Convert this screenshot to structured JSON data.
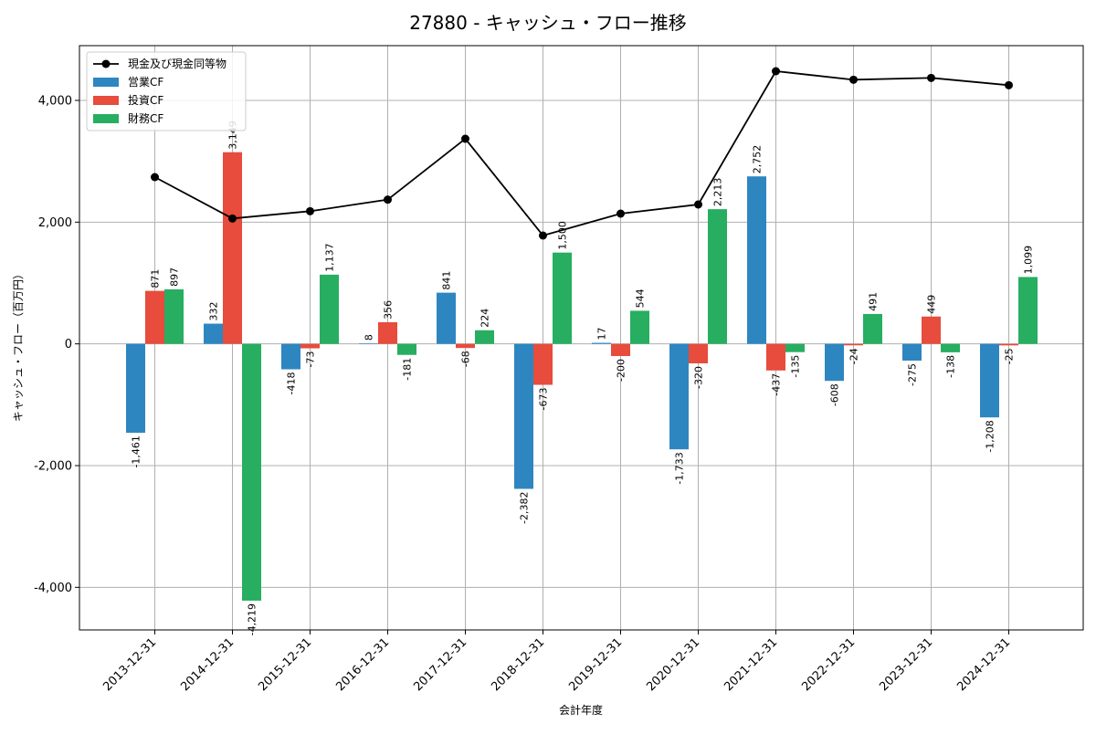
{
  "chart_data": {
    "type": "bar",
    "title": "27880 - キャッシュ・フロー推移",
    "xlabel": "会計年度",
    "ylabel": "キャッシュ・フロー（百万円）",
    "ylim": [
      -4700,
      4900
    ],
    "yticks": [
      -4000,
      -2000,
      0,
      2000,
      4000
    ],
    "ytick_labels": [
      "-4,000",
      "-2,000",
      "0",
      "2,000",
      "4,000"
    ],
    "grid": true,
    "legend_position": "top-left",
    "categories": [
      "2013-12-31",
      "2014-12-31",
      "2015-12-31",
      "2016-12-31",
      "2017-12-31",
      "2018-12-31",
      "2019-12-31",
      "2020-12-31",
      "2021-12-31",
      "2022-12-31",
      "2023-12-31",
      "2024-12-31"
    ],
    "series": [
      {
        "name": "営業CF",
        "kind": "bar",
        "color": "#2e86c1",
        "values": [
          -1461,
          332,
          -418,
          8,
          841,
          -2382,
          17,
          -1733,
          2752,
          -608,
          -275,
          -1208
        ],
        "labels": [
          "-1,461",
          "332",
          "-418",
          "8",
          "841",
          "-2,382",
          "17",
          "-1,733",
          "2,752",
          "-608",
          "-275",
          "-1,208"
        ]
      },
      {
        "name": "投資CF",
        "kind": "bar",
        "color": "#e74c3c",
        "values": [
          871,
          3149,
          -73,
          356,
          -68,
          -673,
          -200,
          -320,
          -437,
          -24,
          449,
          -25
        ],
        "labels": [
          "871",
          "3,149",
          "-73",
          "356",
          "-68",
          "-673",
          "-200",
          "-320",
          "-437",
          "-24",
          "449",
          "-25"
        ]
      },
      {
        "name": "財務CF",
        "kind": "bar",
        "color": "#27ae60",
        "values": [
          897,
          -4219,
          1137,
          -181,
          224,
          1500,
          544,
          2213,
          -135,
          491,
          -138,
          1099
        ],
        "labels": [
          "897",
          "-4,219",
          "1,137",
          "-181",
          "224",
          "1,500",
          "544",
          "2,213",
          "-135",
          "491",
          "-138",
          "1,099"
        ]
      },
      {
        "name": "現金及び現金同等物",
        "kind": "line",
        "color": "#000000",
        "values": [
          2740,
          2060,
          2180,
          2370,
          3370,
          1780,
          2140,
          2290,
          4480,
          4340,
          4370,
          4250
        ]
      }
    ]
  }
}
